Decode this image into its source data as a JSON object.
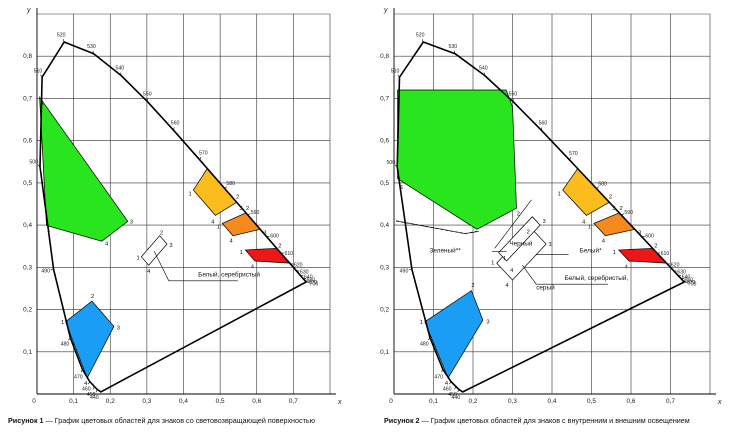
{
  "colors": {
    "green": "#29e51d",
    "blue": "#1a9ef5",
    "yellow": "#fbbd1e",
    "orange": "#f58a1e",
    "red": "#ee1717",
    "white_box": "#ffffff",
    "grid": "#333333",
    "locus": "#000000"
  },
  "chart_data": [
    {
      "type": "scatter",
      "title": "Рисунок 1 — График цветовых областей для знаков со световозвращающей поверхностью",
      "title_prefix": "Рисунок 1",
      "title_rest": " — График цветовых областей для знаков со световозвращающей поверхностью",
      "xlabel": "x",
      "ylabel": "y",
      "xlim": [
        0,
        0.8
      ],
      "ylim": [
        0,
        0.9
      ],
      "x_ticks": [
        "0",
        "0,1",
        "0,2",
        "0,3",
        "0,4",
        "0,5",
        "0,6",
        "0,7"
      ],
      "y_ticks": [
        "0,1",
        "0,2",
        "0,3",
        "0,4",
        "0,5",
        "0,6",
        "0,7",
        "0,8"
      ],
      "grid": true,
      "spectral_locus": [
        {
          "nm": "380",
          "x": 0.1741,
          "y": 0.005
        },
        {
          "nm": "440",
          "x": 0.1644,
          "y": 0.0109
        },
        {
          "nm": "450",
          "x": 0.1566,
          "y": 0.0177
        },
        {
          "nm": "460",
          "x": 0.144,
          "y": 0.0297
        },
        {
          "nm": "470",
          "x": 0.1241,
          "y": 0.0578
        },
        {
          "nm": "480",
          "x": 0.0913,
          "y": 0.1327
        },
        {
          "nm": "490",
          "x": 0.0454,
          "y": 0.295
        },
        {
          "nm": "500",
          "x": 0.0082,
          "y": 0.5384
        },
        {
          "nm": "510",
          "x": 0.0139,
          "y": 0.7502
        },
        {
          "nm": "520",
          "x": 0.0743,
          "y": 0.8338
        },
        {
          "nm": "530",
          "x": 0.1547,
          "y": 0.8059
        },
        {
          "nm": "540",
          "x": 0.2296,
          "y": 0.7543
        },
        {
          "nm": "550",
          "x": 0.3016,
          "y": 0.6923
        },
        {
          "nm": "560",
          "x": 0.3731,
          "y": 0.6245
        },
        {
          "nm": "570",
          "x": 0.4441,
          "y": 0.5547
        },
        {
          "nm": "580",
          "x": 0.5125,
          "y": 0.4866
        },
        {
          "nm": "590",
          "x": 0.5752,
          "y": 0.4242
        },
        {
          "nm": "600",
          "x": 0.627,
          "y": 0.3725
        },
        {
          "nm": "610",
          "x": 0.6658,
          "y": 0.334
        },
        {
          "nm": "620",
          "x": 0.6915,
          "y": 0.3083
        },
        {
          "nm": "630",
          "x": 0.7079,
          "y": 0.292
        },
        {
          "nm": "640",
          "x": 0.719,
          "y": 0.2809
        },
        {
          "nm": "650",
          "x": 0.726,
          "y": 0.274
        },
        {
          "nm": "670",
          "x": 0.732,
          "y": 0.268
        },
        {
          "nm": "700",
          "x": 0.7347,
          "y": 0.2653
        }
      ],
      "wavelength_labels": [
        "380",
        "440",
        "450",
        "460",
        "470",
        "480",
        "490",
        "500",
        "510",
        "520",
        "530",
        "540",
        "550",
        "560",
        "570",
        "580",
        "590",
        "600",
        "610",
        "620",
        "630",
        "640",
        "650",
        "670",
        "700"
      ],
      "regions": [
        {
          "name": "green",
          "color_key": "green",
          "points": [
            [
              0.007,
              0.703
            ],
            [
              0.248,
              0.409
            ],
            [
              0.177,
              0.362
            ],
            [
              0.026,
              0.399
            ]
          ]
        },
        {
          "name": "blue",
          "color_key": "blue",
          "points": [
            [
              0.078,
              0.171
            ],
            [
              0.15,
              0.22
            ],
            [
              0.21,
              0.16
            ],
            [
              0.137,
              0.038
            ]
          ]
        },
        {
          "name": "yellow",
          "color_key": "yellow",
          "points": [
            [
              0.545,
              0.454
            ],
            [
              0.487,
              0.423
            ],
            [
              0.427,
              0.483
            ],
            [
              0.465,
              0.534
            ]
          ]
        },
        {
          "name": "orange",
          "color_key": "orange",
          "points": [
            [
              0.61,
              0.39
            ],
            [
              0.535,
              0.375
            ],
            [
              0.506,
              0.404
            ],
            [
              0.57,
              0.429
            ]
          ]
        },
        {
          "name": "red",
          "color_key": "red",
          "points": [
            [
              0.69,
              0.31
            ],
            [
              0.595,
              0.315
            ],
            [
              0.569,
              0.341
            ],
            [
              0.655,
              0.345
            ]
          ]
        },
        {
          "name": "white",
          "color_key": "white_box",
          "points": [
            [
              0.355,
              0.355
            ],
            [
              0.305,
              0.305
            ],
            [
              0.285,
              0.325
            ],
            [
              0.335,
              0.375
            ]
          ]
        }
      ],
      "vertex_labels": [
        [
          "1",
          0.015,
          0.69
        ],
        [
          "3",
          0.258,
          0.409
        ],
        [
          "4",
          0.19,
          0.357
        ],
        [
          "1",
          0.032,
          0.39
        ],
        [
          "1",
          0.07,
          0.17
        ],
        [
          "2",
          0.152,
          0.232
        ],
        [
          "3",
          0.222,
          0.158
        ],
        [
          "4",
          0.133,
          0.026
        ],
        [
          "1",
          0.418,
          0.475
        ],
        [
          "2",
          0.548,
          0.468
        ],
        [
          "3",
          0.557,
          0.44
        ],
        [
          "4",
          0.48,
          0.408
        ],
        [
          "1",
          0.495,
          0.397
        ],
        [
          "2",
          0.575,
          0.44
        ],
        [
          "3",
          0.622,
          0.383
        ],
        [
          "4",
          0.53,
          0.364
        ],
        [
          "1",
          0.558,
          0.336
        ],
        [
          "2",
          0.663,
          0.352
        ],
        [
          "4",
          0.588,
          0.302
        ],
        [
          "1",
          0.276,
          0.323
        ],
        [
          "2",
          0.34,
          0.382
        ],
        [
          "3",
          0.366,
          0.353
        ],
        [
          "4",
          0.305,
          0.291
        ]
      ],
      "annotations": [
        {
          "text": "Белый, серебристый",
          "x": 0.44,
          "y": 0.278
        }
      ],
      "leaders": [
        [
          [
            0.32,
            0.338
          ],
          [
            0.36,
            0.268
          ],
          [
            0.548,
            0.268
          ]
        ]
      ]
    },
    {
      "type": "scatter",
      "title": "Рисунок 2 — График цветовых областей для знаков с внутренним и внешним освещением",
      "title_prefix": "Рисунок 2",
      "title_rest": " — График цветовых областей для знаков с внутренним и внешним освещением",
      "xlabel": "x",
      "ylabel": "y",
      "xlim": [
        0,
        0.8
      ],
      "ylim": [
        0,
        0.9
      ],
      "x_ticks": [
        "0",
        "0,1",
        "0,2",
        "0,3",
        "0,4",
        "0,5",
        "0,6",
        "0,7"
      ],
      "y_ticks": [
        "0,1",
        "0,2",
        "0,3",
        "0,4",
        "0,5",
        "0,6",
        "0,7",
        "0,8"
      ],
      "grid": true,
      "regions": [
        {
          "name": "green",
          "color_key": "green",
          "points": [
            [
              0.009,
              0.72
            ],
            [
              0.284,
              0.72
            ],
            [
              0.3,
              0.68
            ],
            [
              0.31,
              0.44
            ],
            [
              0.21,
              0.39
            ],
            [
              0.009,
              0.51
            ]
          ]
        },
        {
          "name": "blue",
          "color_key": "blue",
          "points": [
            [
              0.078,
              0.171
            ],
            [
              0.196,
              0.245
            ],
            [
              0.225,
              0.175
            ],
            [
              0.137,
              0.038
            ]
          ]
        },
        {
          "name": "yellow",
          "color_key": "yellow",
          "points": [
            [
              0.545,
              0.454
            ],
            [
              0.487,
              0.423
            ],
            [
              0.427,
              0.483
            ],
            [
              0.465,
              0.534
            ]
          ]
        },
        {
          "name": "orange",
          "color_key": "orange",
          "points": [
            [
              0.61,
              0.39
            ],
            [
              0.535,
              0.375
            ],
            [
              0.506,
              0.404
            ],
            [
              0.57,
              0.429
            ]
          ]
        },
        {
          "name": "red",
          "color_key": "red",
          "points": [
            [
              0.69,
              0.31
            ],
            [
              0.595,
              0.315
            ],
            [
              0.569,
              0.341
            ],
            [
              0.655,
              0.345
            ]
          ]
        },
        {
          "name": "white",
          "color_key": "white_box",
          "points": [
            [
              0.355,
              0.355
            ],
            [
              0.305,
              0.305
            ],
            [
              0.285,
              0.325
            ],
            [
              0.335,
              0.375
            ]
          ]
        },
        {
          "name": "black",
          "color_key": "white_box",
          "points": [
            [
              0.385,
              0.355
            ],
            [
              0.3,
              0.27
            ],
            [
              0.26,
              0.31
            ],
            [
              0.345,
              0.395
            ]
          ]
        },
        {
          "name": "white-star",
          "color_key": "white_box",
          "points": [
            [
              0.37,
              0.4
            ],
            [
              0.285,
              0.315
            ],
            [
              0.265,
              0.335
            ],
            [
              0.35,
              0.42
            ]
          ]
        }
      ],
      "vertex_labels": [
        [
          "1",
          0.02,
          0.49
        ],
        [
          "1",
          0.07,
          0.17
        ],
        [
          "2",
          0.2,
          0.258
        ],
        [
          "3",
          0.238,
          0.172
        ],
        [
          "4",
          0.133,
          0.026
        ],
        [
          "1",
          0.418,
          0.475
        ],
        [
          "2",
          0.548,
          0.468
        ],
        [
          "3",
          0.557,
          0.44
        ],
        [
          "4",
          0.48,
          0.408
        ],
        [
          "1",
          0.495,
          0.397
        ],
        [
          "2",
          0.575,
          0.44
        ],
        [
          "3",
          0.622,
          0.383
        ],
        [
          "4",
          0.53,
          0.364
        ],
        [
          "1",
          0.558,
          0.336
        ],
        [
          "2",
          0.663,
          0.352
        ],
        [
          "4",
          0.588,
          0.302
        ],
        [
          "2",
          0.315,
          0.428
        ],
        [
          "3",
          0.38,
          0.41
        ],
        [
          "3",
          0.395,
          0.355
        ],
        [
          "1",
          0.28,
          0.322
        ],
        [
          "4",
          0.286,
          0.258
        ],
        [
          "1",
          0.25,
          0.312
        ],
        [
          "4",
          0.298,
          0.294
        ],
        [
          "2",
          0.34,
          0.385
        ]
      ],
      "annotations": [
        {
          "text": "Зеленый**",
          "x": 0.09,
          "y": 0.335
        },
        {
          "text": "Черный",
          "x": 0.292,
          "y": 0.352
        },
        {
          "text": "Белый*",
          "x": 0.47,
          "y": 0.335
        },
        {
          "text": "Белый, серебристый,",
          "x": 0.432,
          "y": 0.27
        },
        {
          "text": "серый",
          "x": 0.36,
          "y": 0.248
        }
      ],
      "leaders": [
        [
          [
            0.005,
            0.41
          ],
          [
            0.18,
            0.38
          ],
          [
            0.215,
            0.385
          ]
        ],
        [
          [
            0.248,
            0.338
          ],
          [
            0.285,
            0.338
          ]
        ],
        [
          [
            0.255,
            0.345
          ],
          [
            0.348,
            0.46
          ]
        ],
        [
          [
            0.36,
            0.33
          ],
          [
            0.442,
            0.33
          ]
        ],
        [
          [
            0.325,
            0.305
          ],
          [
            0.36,
            0.26
          ],
          [
            0.542,
            0.26
          ]
        ]
      ],
      "dashed": [
        [
          [
            0.005,
            0.41
          ],
          [
            0.18,
            0.38
          ],
          [
            0.21,
            0.385
          ]
        ]
      ]
    }
  ]
}
